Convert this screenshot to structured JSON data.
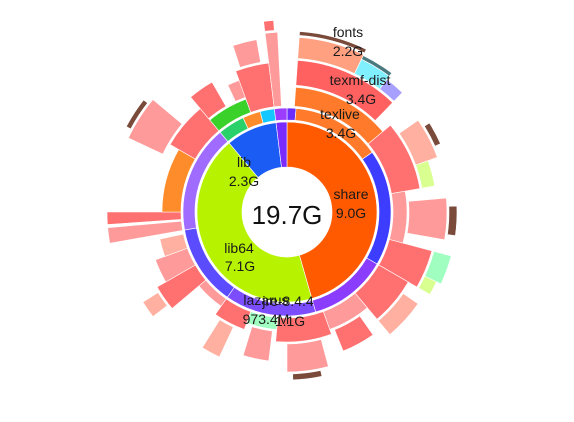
{
  "center": {
    "total": "19.7G"
  },
  "palette": {
    "share": "#ff5a00",
    "lib64": "#b7f200",
    "lib": "#1b5cf5",
    "lib_sub": [
      "#2ad16a",
      "#39d12a",
      "#ff8c2a",
      "#15c7ff"
    ],
    "share_sub": [
      "#8b2cff",
      "#3a3aff",
      "#6b5bff"
    ],
    "lib64_sub": [
      "#8a4dff",
      "#5b4dff",
      "#a06bff"
    ],
    "texlive": "#ff7a2a",
    "texmf": "#ff6060",
    "fonts": "#ffa080",
    "outer_a": "#ff7070",
    "outer_b": "#ff9a9a",
    "outer_c": "#ffb0a0",
    "brown": "#7a4a3a",
    "teal": "#4a7a80",
    "cyan": "#80f0ff",
    "lilac": "#a8a0ff",
    "mint": "#a0ffc0",
    "lime": "#d8ff90"
  },
  "segments": [
    {
      "name": "share",
      "label": "share",
      "value": "9.0G"
    },
    {
      "name": "lib64",
      "label": "lib64",
      "value": "7.1G"
    },
    {
      "name": "lib",
      "label": "lib",
      "value": "2.3G"
    },
    {
      "name": "texlive",
      "label": "texlive",
      "value": "3.4G"
    },
    {
      "name": "texmf-dist",
      "label": "texmf-dist",
      "value": "3.4G"
    },
    {
      "name": "fonts",
      "label": "fonts",
      "value": "2.2G"
    },
    {
      "name": "lazarus",
      "label": "lazarus",
      "value": "973.4M"
    },
    {
      "name": "jre",
      "label": "jre-8.4.4",
      "value": "1.1G"
    }
  ]
}
